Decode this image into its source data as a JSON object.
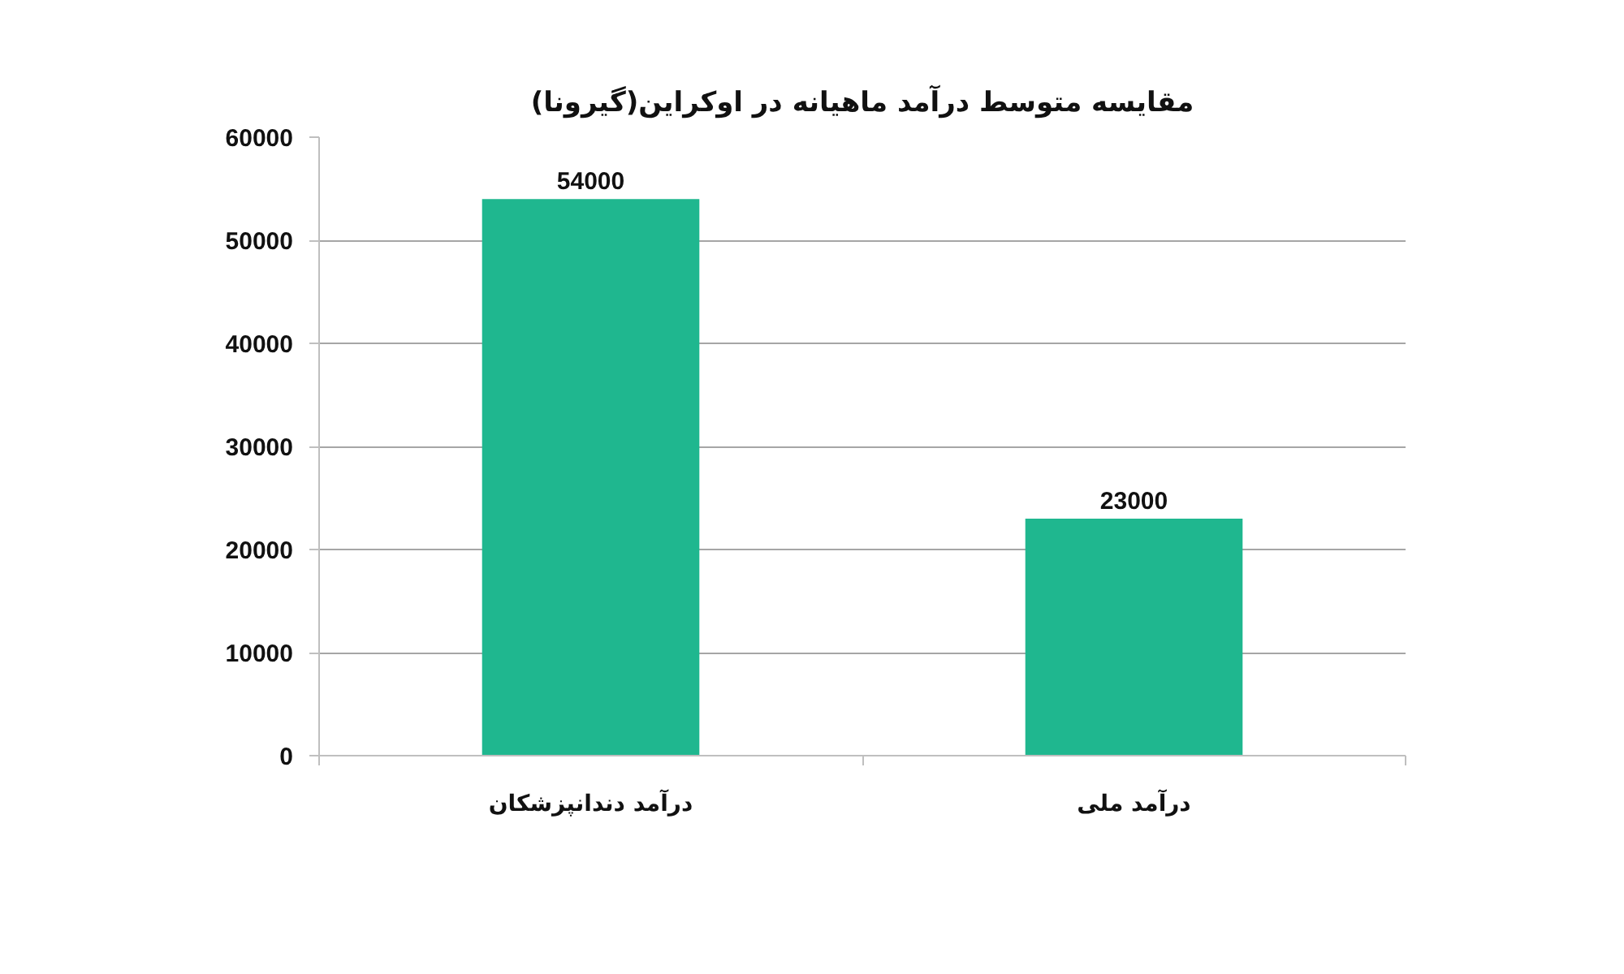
{
  "chart_data": {
    "type": "bar",
    "title": "مقایسه متوسط درآمد ماهیانه در اوکراین(گیرونا)",
    "categories": [
      "درآمد دندانپزشکان",
      "درآمد ملی"
    ],
    "values": [
      54000,
      23000
    ],
    "color": "#1fb78f",
    "ylim": [
      0,
      60000
    ],
    "yticks": [
      0,
      10000,
      20000,
      30000,
      40000,
      50000,
      60000
    ],
    "grid": "y",
    "data_labels": true
  }
}
